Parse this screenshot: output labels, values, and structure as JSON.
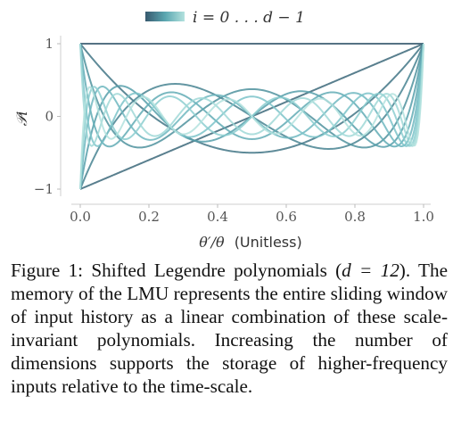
{
  "legend": {
    "label": "i = 0 . . . d − 1"
  },
  "caption": {
    "lead": "Figure 1: Shifted Legendre polynomials (",
    "math": "d = 12",
    "body": "). The memory of the LMU represents the entire sliding window of input history as a linear combination of these scale-invariant polynomials. Increasing the number of dimensions supports the storage of higher-frequency inputs relative to the time-scale."
  },
  "chart_data": {
    "type": "line",
    "function": "shifted_legendre",
    "d": 12,
    "xlabel_math": "θ′/θ",
    "xlabel_text": "(Unitless)",
    "ylabel": "𝒫i",
    "xlim": [
      0.0,
      1.0
    ],
    "ylim": [
      -1,
      1
    ],
    "xticks": [
      "0.0",
      "0.2",
      "0.4",
      "0.6",
      "0.8",
      "1.0"
    ],
    "yticks": [
      "−1",
      "0",
      "1"
    ],
    "grid": false,
    "legend_position": "top-center",
    "colormap": [
      "#37596e",
      "#46818f",
      "#5aa6b0",
      "#7ec6cb",
      "#b3e2de"
    ],
    "series": [
      {
        "i": 0,
        "values": [
          1,
          1,
          1,
          1,
          1
        ]
      },
      {
        "i": 1,
        "values": [
          -1,
          -0.5,
          0,
          0.5,
          1
        ]
      },
      {
        "i": 2,
        "values": [
          1,
          -0.125,
          -0.5,
          -0.125,
          1
        ]
      },
      {
        "i": 3,
        "values": [
          -1,
          0.4375,
          0,
          -0.4375,
          1
        ]
      },
      {
        "i": 4,
        "values": [
          1,
          -0.289,
          0.375,
          -0.289,
          1
        ]
      },
      {
        "i": 5,
        "values": [
          -1,
          -0.09,
          0,
          0.09,
          1
        ]
      },
      {
        "i": 6,
        "values": [
          1,
          0.323,
          -0.3125,
          0.323,
          1
        ]
      },
      {
        "i": 7,
        "values": [
          -1,
          -0.223,
          0,
          0.223,
          1
        ]
      },
      {
        "i": 8,
        "values": [
          1,
          -0.073,
          0.273,
          -0.073,
          1
        ]
      },
      {
        "i": 9,
        "values": [
          -1,
          0.267,
          0,
          -0.267,
          1
        ]
      },
      {
        "i": 10,
        "values": [
          1,
          -0.188,
          -0.246,
          -0.188,
          1
        ]
      },
      {
        "i": 11,
        "values": [
          -1,
          -0.067,
          0,
          0.067,
          1
        ]
      }
    ]
  }
}
